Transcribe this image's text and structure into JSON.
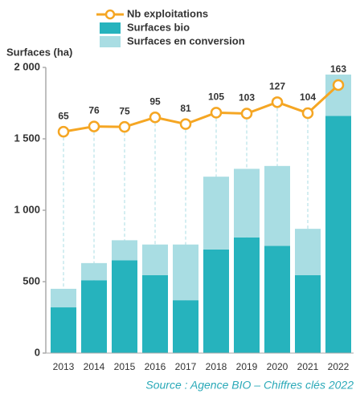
{
  "chart_data": {
    "type": "bar-line",
    "y_label": "Surfaces (ha)",
    "source": "Source : Agence BIO – Chiffres clés 2022",
    "categories": [
      "2013",
      "2014",
      "2015",
      "2016",
      "2017",
      "2018",
      "2019",
      "2020",
      "2021",
      "2022"
    ],
    "series": [
      {
        "name": "Surfaces bio",
        "color": "#26b3bd",
        "type": "bar",
        "values": [
          320,
          510,
          650,
          545,
          370,
          725,
          810,
          750,
          545,
          1660
        ]
      },
      {
        "name": "Surfaces en conversion",
        "color": "#a9dde3",
        "type": "bar",
        "values": [
          130,
          120,
          140,
          215,
          390,
          510,
          480,
          560,
          325,
          290
        ]
      },
      {
        "name": "Nb exploitations",
        "color": "#f5a623",
        "type": "line",
        "axis": "y2",
        "values": [
          65,
          76,
          75,
          95,
          81,
          105,
          103,
          127,
          104,
          163
        ]
      }
    ],
    "ylim": [
      0,
      2000
    ],
    "yticks": [
      0,
      500,
      {
        "value": 1000,
        "label": "1 000"
      },
      {
        "value": 1500,
        "label": "1 500"
      },
      {
        "value": 2000,
        "label": "2 000"
      }
    ],
    "y2lim": [
      -400,
      200
    ]
  }
}
